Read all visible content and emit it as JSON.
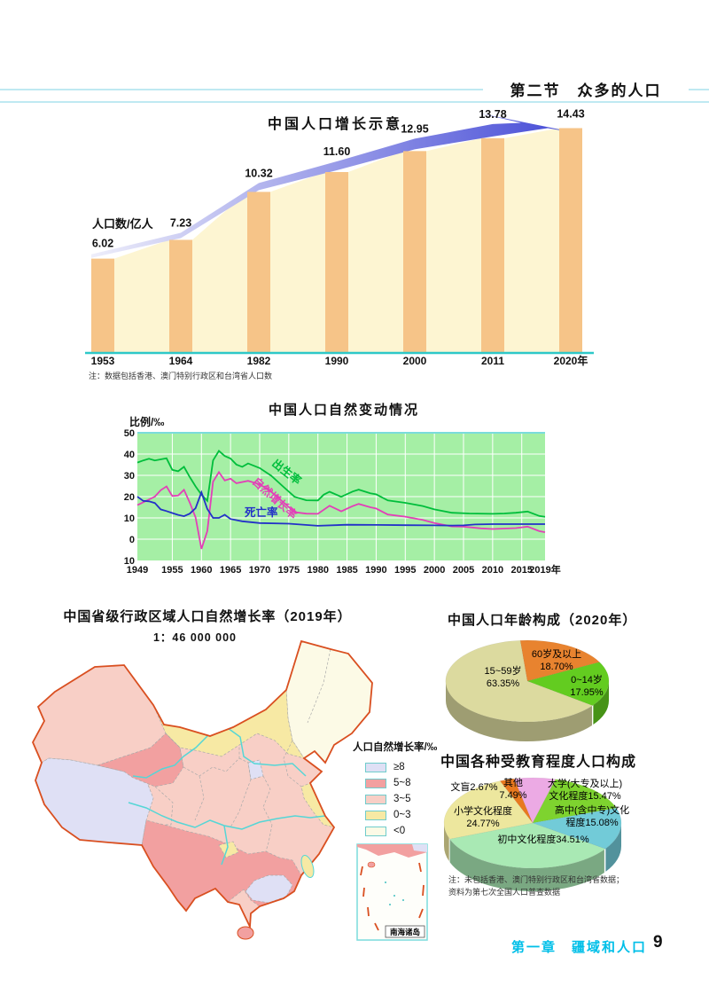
{
  "header": {
    "section_title": "第二节　众多的人口"
  },
  "footer": {
    "chapter": "第一章　疆域和人口",
    "page_number": "9"
  },
  "map": {
    "title": "中国省级行政区域人口自然增长率（2019年）",
    "scale": "1：46 000 000",
    "legend_title": "人口自然增长率/‰",
    "legend": [
      {
        "label": "≥8",
        "color": "#dfe0f5"
      },
      {
        "label": "5~8",
        "color": "#f2a0a0"
      },
      {
        "label": "3~5",
        "color": "#f8cfc6"
      },
      {
        "label": "0~3",
        "color": "#f7e9a4"
      },
      {
        "label": "<0",
        "color": "#fcfae6"
      }
    ],
    "inset_label": "南海诸岛"
  },
  "chart_data": [
    {
      "type": "bar",
      "title": "中国人口增长示意",
      "ylabel": "人口数/亿人",
      "note": "注：数据包括香港、澳门特别行政区和台湾省人口数",
      "categories": [
        "1953",
        "1964",
        "1982",
        "1990",
        "2000",
        "2011",
        "2020年"
      ],
      "values": [
        6.02,
        7.23,
        10.32,
        11.6,
        12.95,
        13.78,
        14.43
      ],
      "bar_color": "#f6c488",
      "area_color": "#fdf5d2",
      "arrow_color_start": "#eeeefa",
      "arrow_color_end": "#4349d6"
    },
    {
      "type": "line",
      "title": "中国人口自然变动情况",
      "ylabel": "比例/‰",
      "x_ticks": [
        "1949",
        "1955",
        "1960",
        "1965",
        "1970",
        "1975",
        "1980",
        "1985",
        "1990",
        "1995",
        "2000",
        "2005",
        "2010",
        "2015",
        "2019年"
      ],
      "y_ticks": [
        "50",
        "40",
        "30",
        "20",
        "10",
        "0",
        "10"
      ],
      "y_tick_values": [
        50,
        40,
        30,
        20,
        10,
        0,
        -10
      ],
      "ylim": [
        -10,
        50
      ],
      "series": [
        {
          "name": "出生率",
          "color": "#00be3c",
          "points": [
            [
              1949,
              36
            ],
            [
              1950,
              37
            ],
            [
              1951,
              37.8
            ],
            [
              1952,
              37
            ],
            [
              1954,
              38
            ],
            [
              1955,
              32.6
            ],
            [
              1956,
              31.9
            ],
            [
              1957,
              34
            ],
            [
              1958,
              29.2
            ],
            [
              1959,
              24.8
            ],
            [
              1960,
              20.9
            ],
            [
              1961,
              18
            ],
            [
              1962,
              37
            ],
            [
              1963,
              41.5
            ],
            [
              1964,
              39.1
            ],
            [
              1965,
              37.9
            ],
            [
              1966,
              35.1
            ],
            [
              1967,
              34
            ],
            [
              1968,
              35.6
            ],
            [
              1970,
              33.4
            ],
            [
              1972,
              29.8
            ],
            [
              1974,
              24.8
            ],
            [
              1976,
              19.9
            ],
            [
              1978,
              18.3
            ],
            [
              1980,
              18.2
            ],
            [
              1981,
              20.9
            ],
            [
              1982,
              22.3
            ],
            [
              1984,
              19.9
            ],
            [
              1986,
              22.4
            ],
            [
              1987,
              23.3
            ],
            [
              1989,
              21.6
            ],
            [
              1990,
              21.1
            ],
            [
              1992,
              18.2
            ],
            [
              1995,
              17.1
            ],
            [
              1998,
              15.6
            ],
            [
              2000,
              14
            ],
            [
              2003,
              12.4
            ],
            [
              2006,
              12.1
            ],
            [
              2010,
              11.9
            ],
            [
              2012,
              12.1
            ],
            [
              2014,
              12.4
            ],
            [
              2016,
              13
            ],
            [
              2018,
              10.9
            ],
            [
              2019,
              10.5
            ]
          ]
        },
        {
          "name": "自然增长率",
          "color": "#e33fb8",
          "points": [
            [
              1949,
              16
            ],
            [
              1952,
              20
            ],
            [
              1953,
              23
            ],
            [
              1954,
              24.8
            ],
            [
              1955,
              20.3
            ],
            [
              1956,
              20.5
            ],
            [
              1957,
              23.2
            ],
            [
              1958,
              17.2
            ],
            [
              1959,
              10.2
            ],
            [
              1960,
              -4.6
            ],
            [
              1961,
              3.8
            ],
            [
              1962,
              27
            ],
            [
              1963,
              31.5
            ],
            [
              1964,
              27.6
            ],
            [
              1965,
              28.4
            ],
            [
              1966,
              26.3
            ],
            [
              1968,
              27.4
            ],
            [
              1970,
              25.8
            ],
            [
              1972,
              22.2
            ],
            [
              1974,
              17.5
            ],
            [
              1976,
              12.7
            ],
            [
              1978,
              12
            ],
            [
              1980,
              11.9
            ],
            [
              1982,
              15.7
            ],
            [
              1984,
              13.1
            ],
            [
              1986,
              15.6
            ],
            [
              1987,
              16.6
            ],
            [
              1989,
              15
            ],
            [
              1990,
              14.4
            ],
            [
              1992,
              11.6
            ],
            [
              1995,
              10.6
            ],
            [
              1998,
              9.1
            ],
            [
              2000,
              7.6
            ],
            [
              2003,
              6
            ],
            [
              2005,
              5.9
            ],
            [
              2008,
              5.1
            ],
            [
              2010,
              4.8
            ],
            [
              2012,
              5
            ],
            [
              2014,
              5.2
            ],
            [
              2016,
              5.9
            ],
            [
              2018,
              3.8
            ],
            [
              2019,
              3.3
            ]
          ]
        },
        {
          "name": "死亡率",
          "color": "#2331c8",
          "points": [
            [
              1949,
              20
            ],
            [
              1950,
              18
            ],
            [
              1951,
              17.8
            ],
            [
              1952,
              17
            ],
            [
              1953,
              14
            ],
            [
              1954,
              13.2
            ],
            [
              1955,
              12.3
            ],
            [
              1956,
              11.4
            ],
            [
              1957,
              10.8
            ],
            [
              1958,
              12
            ],
            [
              1959,
              14.6
            ],
            [
              1960,
              22
            ],
            [
              1961,
              14.2
            ],
            [
              1962,
              10
            ],
            [
              1963,
              10
            ],
            [
              1964,
              11.5
            ],
            [
              1965,
              9.5
            ],
            [
              1967,
              8.4
            ],
            [
              1970,
              7.6
            ],
            [
              1975,
              7.3
            ],
            [
              1980,
              6.3
            ],
            [
              1985,
              6.8
            ],
            [
              1990,
              6.7
            ],
            [
              1995,
              6.6
            ],
            [
              2000,
              6.5
            ],
            [
              2003,
              6.4
            ],
            [
              2005,
              6.5
            ],
            [
              2007,
              6.9
            ],
            [
              2010,
              7.1
            ],
            [
              2015,
              7.1
            ],
            [
              2019,
              7.1
            ]
          ]
        }
      ]
    },
    {
      "type": "pie",
      "title": "中国人口年龄构成（2020年）",
      "slices": [
        {
          "name": "60岁及以上",
          "value": 18.7,
          "color": "#e8832f"
        },
        {
          "name": "0~14岁",
          "value": 17.95,
          "color": "#63cc20"
        },
        {
          "name": "15~59岁",
          "value": 63.35,
          "color": "#dcda9f"
        }
      ],
      "labels": [
        {
          "l1": "60岁及以上",
          "l2": "18.70%"
        },
        {
          "l1": "0~14岁",
          "l2": "17.95%"
        },
        {
          "l1": "15~59岁",
          "l2": "63.35%"
        }
      ]
    },
    {
      "type": "pie",
      "title": "中国各种受教育程度人口构成",
      "slices": [
        {
          "name": "文盲",
          "value": 2.67,
          "color": "#e8791f"
        },
        {
          "name": "其他",
          "value": 7.49,
          "color": "#ecaae4"
        },
        {
          "name": "大学(大专及以上)文化程度",
          "value": 15.47,
          "color": "#7ed32f"
        },
        {
          "name": "高中(含中专)文化程度",
          "value": 15.08,
          "color": "#72cbd8"
        },
        {
          "name": "初中文化程度",
          "value": 34.51,
          "color": "#a9e9b4"
        },
        {
          "name": "小学文化程度",
          "value": 24.77,
          "color": "#ede79e"
        }
      ],
      "labels": [
        {
          "l1": "文盲2.67%",
          "l2": ""
        },
        {
          "l1": "其他",
          "l2": "7.49%"
        },
        {
          "l1": "大学(大专及以上)",
          "l2": "文化程度15.47%"
        },
        {
          "l1": "高中(含中专)文化",
          "l2": "程度15.08%"
        },
        {
          "l1": "初中文化程度34.51%",
          "l2": ""
        },
        {
          "l1": "小学文化程度",
          "l2": "24.77%"
        }
      ],
      "note1": "注：未包括香港、澳门特别行政区和台湾省数据；",
      "note2": "资料为第七次全国人口普查数据"
    }
  ]
}
